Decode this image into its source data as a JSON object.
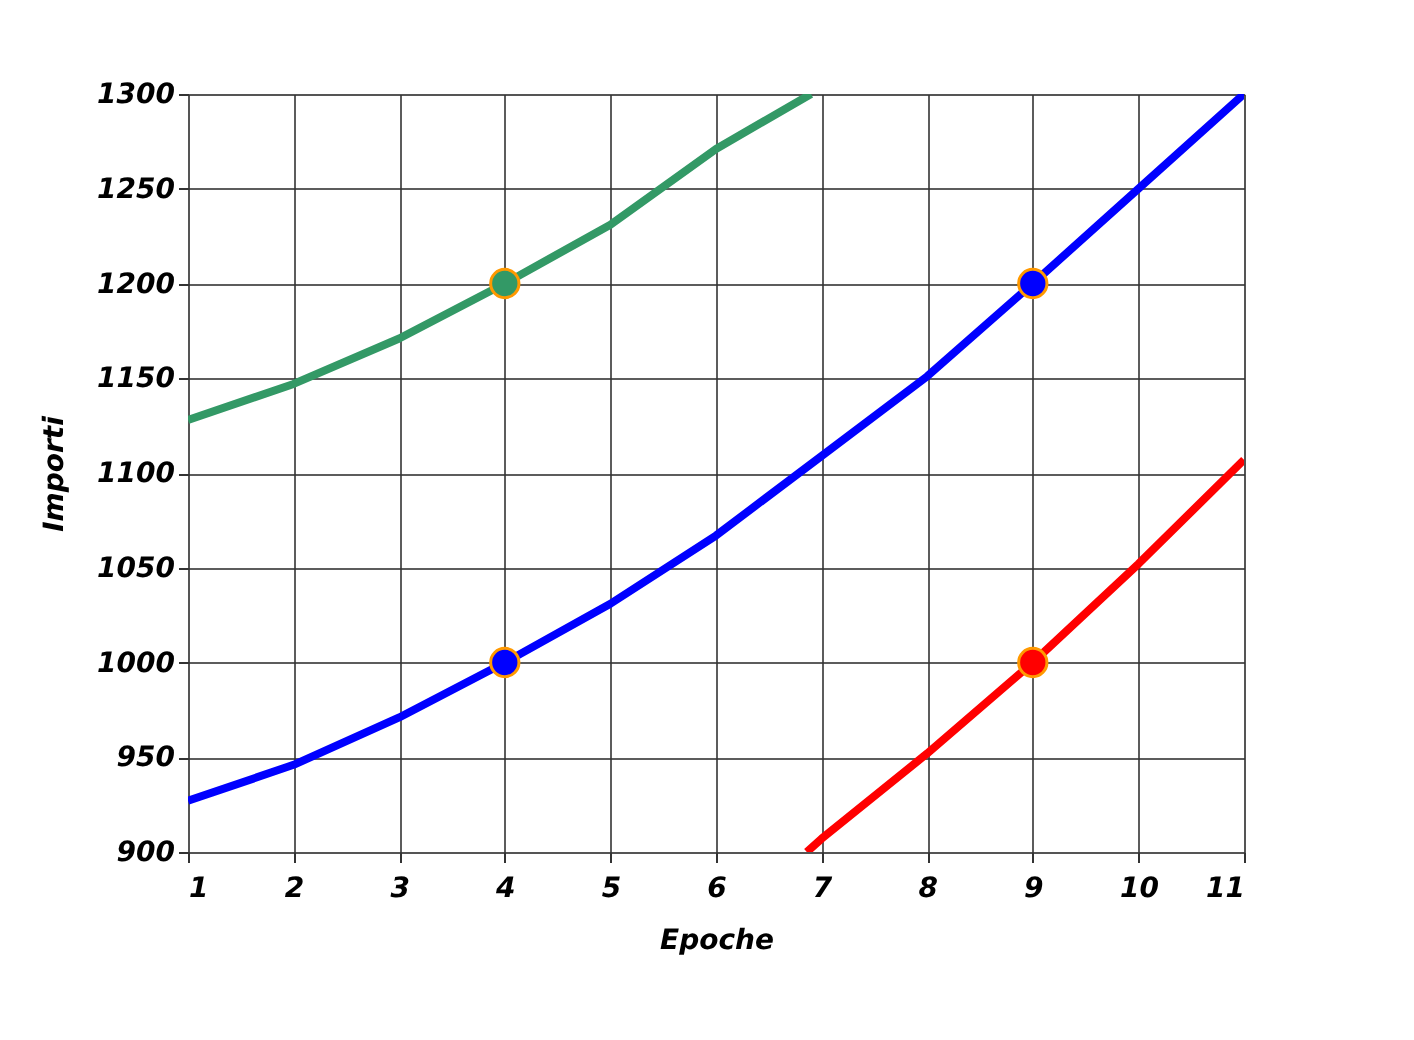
{
  "chart_data": {
    "type": "line",
    "xlabel": "Epoche",
    "ylabel": "Importi",
    "xlim": [
      1,
      11
    ],
    "xticks": [
      1,
      2,
      3,
      4,
      5,
      6,
      7,
      8,
      9,
      10,
      11
    ],
    "ylim": [
      900,
      1300
    ],
    "yticks": [
      900,
      950,
      1000,
      1050,
      1100,
      1150,
      1200,
      1250,
      1300
    ],
    "grid": true,
    "marker": "none",
    "line_style": "solid",
    "legend": false,
    "series": [
      {
        "color": "#339966",
        "x": [
          1,
          2,
          3,
          4,
          5,
          6,
          6.9
        ],
        "values": [
          1128,
          1147,
          1171,
          1200,
          1231,
          1271,
          1300
        ]
      },
      {
        "color": "#0000ff",
        "x": [
          1,
          2,
          3,
          4,
          5,
          6,
          7,
          8,
          9,
          10,
          11
        ],
        "values": [
          927,
          946,
          971,
          1000,
          1031,
          1067,
          1109,
          1151,
          1200,
          1250,
          1300
        ]
      },
      {
        "color": "#ff0000",
        "x": [
          6.86,
          7,
          8,
          9,
          10,
          11
        ],
        "values": [
          900,
          907,
          952,
          1000,
          1052,
          1107
        ]
      },
      {
        "type": "scatter",
        "marker": "circle",
        "color": "#339966",
        "x": [
          4
        ],
        "values": [
          1200
        ]
      },
      {
        "type": "scatter",
        "marker": "circle",
        "color": "#0000ff",
        "x": [
          4,
          9
        ],
        "values": [
          1000,
          1200
        ]
      },
      {
        "type": "scatter",
        "marker": "circle",
        "color": "#ff0000",
        "x": [
          9
        ],
        "values": [
          1000
        ]
      }
    ]
  }
}
